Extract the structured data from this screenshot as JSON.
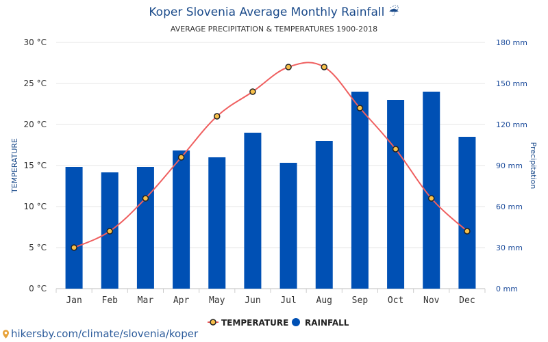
{
  "chart_data": {
    "type": "bar",
    "title": "Koper Slovenia Average Monthly Rainfall",
    "title_icon": "umbrella-rain-icon",
    "subtitle": "AVERAGE PRECIPITATION & TEMPERATURES 1900-2018",
    "categories": [
      "Jan",
      "Feb",
      "Mar",
      "Apr",
      "May",
      "Jun",
      "Jul",
      "Aug",
      "Sep",
      "Oct",
      "Nov",
      "Dec"
    ],
    "series": [
      {
        "name": "RAINFALL",
        "kind": "bar",
        "axis": "right",
        "color": "#0050b4",
        "values": [
          89,
          85,
          89,
          101,
          96,
          114,
          92,
          108,
          144,
          138,
          144,
          111
        ]
      },
      {
        "name": "TEMPERATURE",
        "kind": "line",
        "axis": "left",
        "color": "#ef5f5f",
        "marker_fill": "#f7c04a",
        "values": [
          5,
          7,
          11,
          16,
          21,
          24,
          27,
          27,
          22,
          17,
          11,
          7
        ]
      }
    ],
    "left_axis": {
      "label": "TEMPERATURE",
      "ticks": [
        "0 °C",
        "5 °C",
        "10 °C",
        "15 °C",
        "20 °C",
        "25 °C",
        "30 °C"
      ],
      "range": [
        0,
        30
      ]
    },
    "right_axis": {
      "label": "Precipitation",
      "ticks": [
        "0 mm",
        "30 mm",
        "60 mm",
        "90 mm",
        "120 mm",
        "150 mm",
        "180 mm"
      ],
      "range": [
        0,
        180
      ]
    },
    "grid": true,
    "legend_position": "bottom-center"
  },
  "footer": {
    "text": "hikersby.com/climate/slovenia/koper",
    "icon": "location-pin-icon"
  }
}
